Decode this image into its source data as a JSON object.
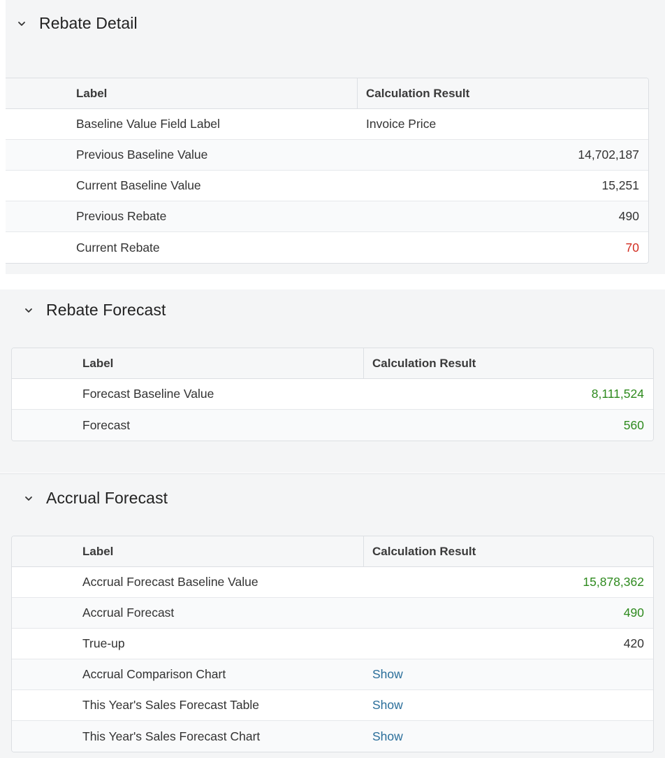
{
  "sections": {
    "detail": {
      "title": "Rebate Detail",
      "columns": {
        "label": "Label",
        "result": "Calculation Result"
      },
      "rows": [
        {
          "label": "Baseline Value Field Label",
          "value": "Invoice Price"
        },
        {
          "label": "Previous Baseline Value",
          "value": "14,702,187"
        },
        {
          "label": "Current Baseline Value",
          "value": "15,251"
        },
        {
          "label": "Previous Rebate",
          "value": "490"
        },
        {
          "label": "Current Rebate",
          "value": "70"
        }
      ]
    },
    "forecast": {
      "title": "Rebate Forecast",
      "columns": {
        "label": "Label",
        "result": "Calculation Result"
      },
      "rows": [
        {
          "label": "Forecast Baseline Value",
          "value": "8,111,524"
        },
        {
          "label": "Forecast",
          "value": "560"
        }
      ]
    },
    "accrual": {
      "title": "Accrual Forecast",
      "columns": {
        "label": "Label",
        "result": "Calculation Result"
      },
      "rows": [
        {
          "label": "Accrual Forecast Baseline Value",
          "value": "15,878,362"
        },
        {
          "label": "Accrual Forecast",
          "value": "490"
        },
        {
          "label": "True-up",
          "value": "420"
        },
        {
          "label": "Accrual Comparison Chart",
          "value": "Show"
        },
        {
          "label": "This Year's Sales Forecast Table",
          "value": "Show"
        },
        {
          "label": "This Year's Sales Forecast Chart",
          "value": "Show"
        }
      ]
    }
  },
  "icons": {
    "collapse": "chevron-down-icon"
  },
  "colors": {
    "negative": "#d22c20",
    "positive": "#2e8a1e",
    "link": "#2a6e9a"
  }
}
